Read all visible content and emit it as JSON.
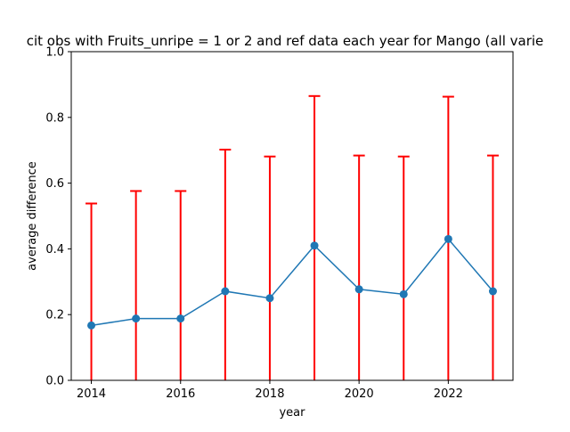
{
  "chart_data": {
    "type": "line",
    "title": "cit obs with Fruits_unripe = 1 or 2 and ref data each year for Mango (all varie",
    "xlabel": "year",
    "ylabel": "average difference",
    "xlim": [
      2013.55,
      2023.45
    ],
    "ylim": [
      0,
      1.0
    ],
    "x_ticks": [
      2014,
      2016,
      2018,
      2020,
      2022
    ],
    "y_ticks": [
      0.0,
      0.2,
      0.4,
      0.6,
      0.8,
      1.0
    ],
    "x_tick_labels": [
      "2014",
      "2016",
      "2018",
      "2020",
      "2022"
    ],
    "y_tick_labels": [
      "0.0",
      "0.2",
      "0.4",
      "0.6",
      "0.8",
      "1.0"
    ],
    "grid": false,
    "series": [
      {
        "x": [
          2014,
          2015,
          2016,
          2017,
          2018,
          2019,
          2020,
          2021,
          2022,
          2023
        ],
        "values": [
          0.167,
          0.188,
          0.188,
          0.271,
          0.25,
          0.41,
          0.277,
          0.262,
          0.43,
          0.271
        ],
        "error_upper": [
          0.538,
          0.576,
          0.576,
          0.702,
          0.681,
          0.865,
          0.684,
          0.681,
          0.863,
          0.684
        ],
        "error_lower": [
          0,
          0,
          0,
          0,
          0,
          0,
          0,
          0,
          0,
          0
        ],
        "color": "#1f77b4",
        "error_color": "#ff0000"
      }
    ]
  }
}
